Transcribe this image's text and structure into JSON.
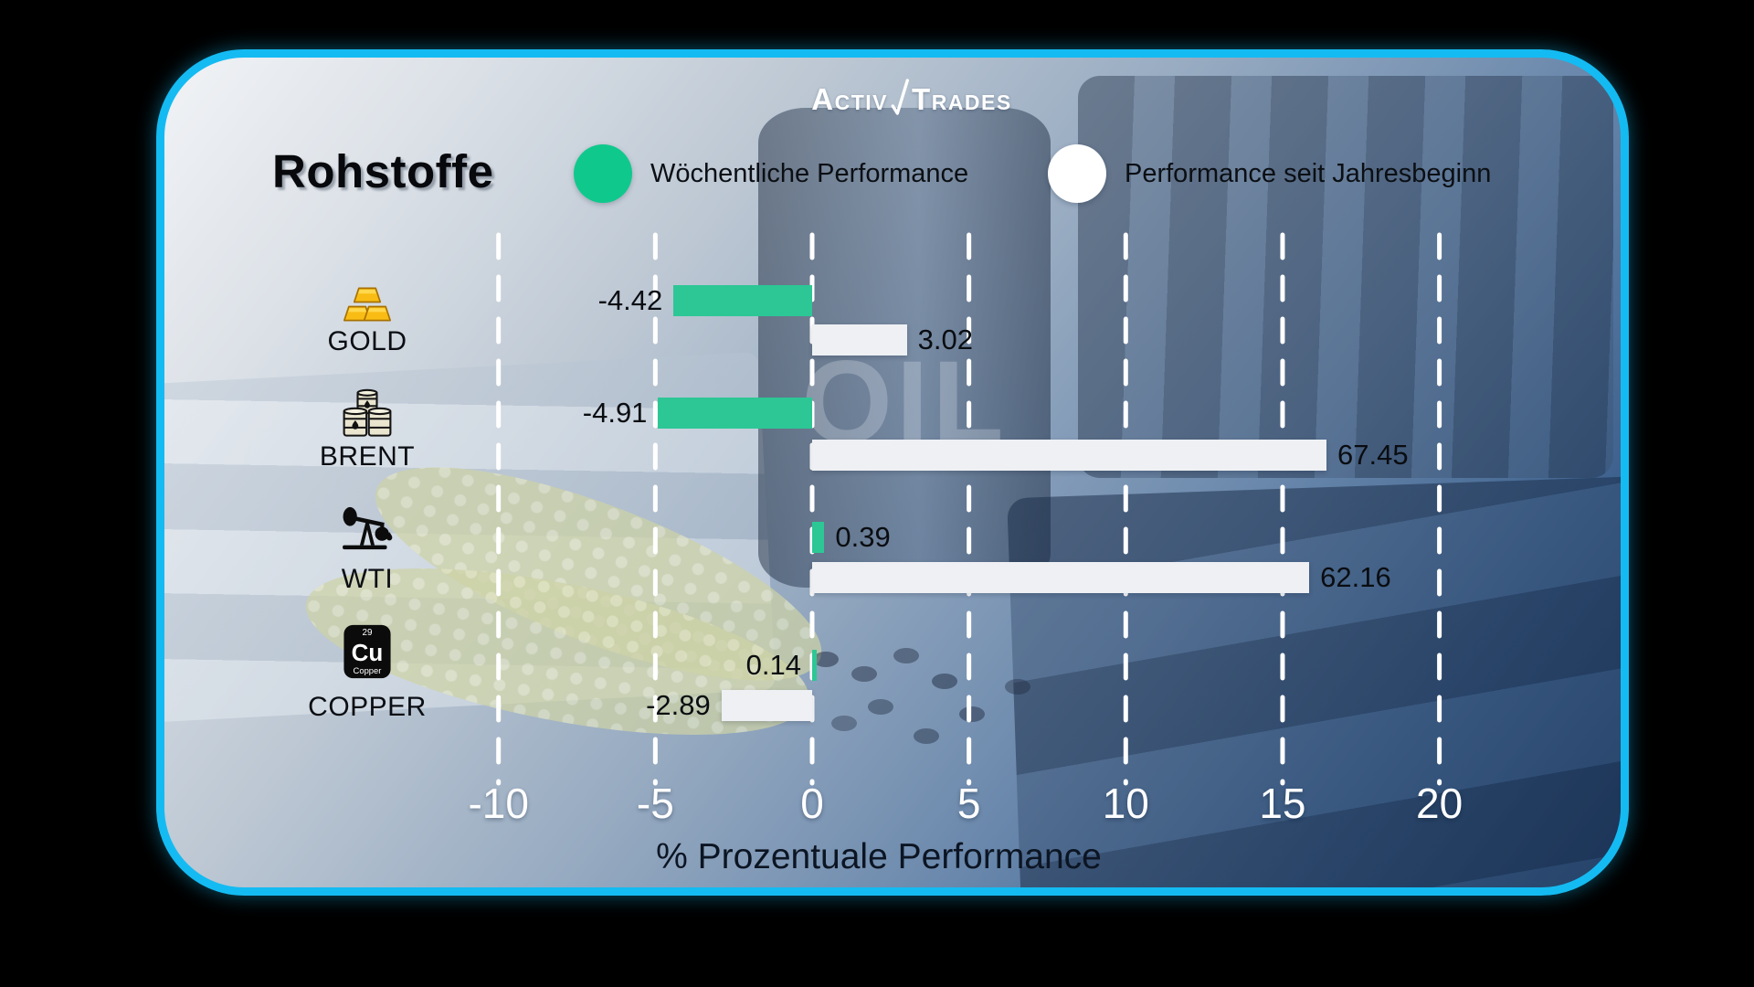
{
  "brand": {
    "logo_part1": "Activ",
    "logo_part2": "Trades"
  },
  "header": {
    "title": "Rohstoffe"
  },
  "legend": [
    {
      "label": "Wöchentliche Performance",
      "color": "#0fc98c"
    },
    {
      "label": "Performance seit Jahresbeginn",
      "color": "#ffffff"
    }
  ],
  "background_photo": {
    "oil_label": "OIL"
  },
  "icons": {
    "copper_element": {
      "number": "29",
      "symbol": "Cu",
      "name": "Copper"
    }
  },
  "colors": {
    "weekly_bar": "#2cc795",
    "ytd_bar": "#eef0f3",
    "card_border": "#14bbf2",
    "gridlines": "#ffffff"
  },
  "chart_data": {
    "type": "bar",
    "orientation": "horizontal",
    "title": "Rohstoffe",
    "xlabel": "% Prozentuale Performance",
    "legend_position": "top",
    "grid": "vertical-dashed-white",
    "axis": {
      "min": -12.5,
      "max": 22.5,
      "ticks": [
        -10,
        -5,
        0,
        5,
        10,
        15,
        20
      ]
    },
    "series_names": [
      "Wöchentliche Performance",
      "Performance seit Jahresbeginn"
    ],
    "rows": [
      {
        "label": "GOLD",
        "icon": "gold-bars",
        "weekly": {
          "value": -4.42,
          "label": "-4.42"
        },
        "ytd": {
          "value": 3.02,
          "label": "3.02"
        }
      },
      {
        "label": "BRENT",
        "icon": "oil-barrels",
        "weekly": {
          "value": -4.91,
          "label": "-4.91"
        },
        "ytd": {
          "value": 67.45,
          "label": "67.45",
          "display_units": 16.4,
          "clipped": true
        }
      },
      {
        "label": "WTI",
        "icon": "oil-pump",
        "weekly": {
          "value": 0.39,
          "label": "0.39"
        },
        "ytd": {
          "value": 62.16,
          "label": "62.16",
          "display_units": 15.85,
          "clipped": true
        }
      },
      {
        "label": "COPPER",
        "icon": "copper-element",
        "weekly": {
          "value": 0.14,
          "label": "0.14",
          "label_side": "left"
        },
        "ytd": {
          "value": -2.89,
          "label": "-2.89"
        }
      }
    ],
    "notes": "YTD bars for BRENT and WTI are clipped at the right edge of the plot area"
  }
}
